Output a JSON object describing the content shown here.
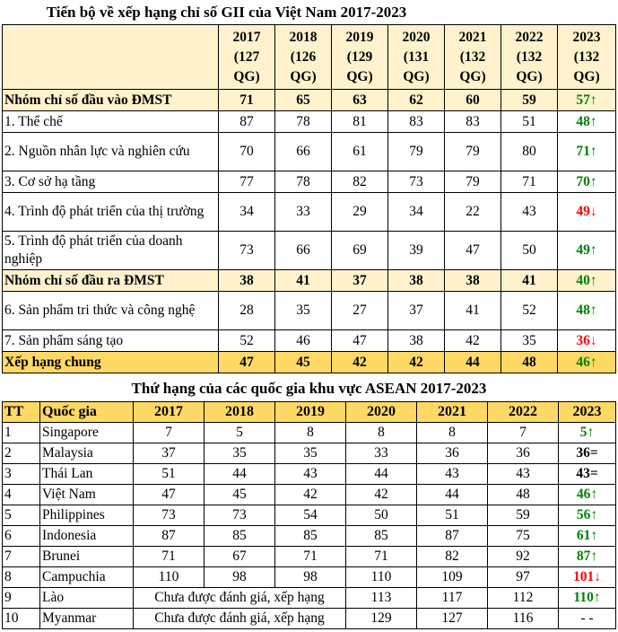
{
  "meta": {
    "trend_symbols": {
      "up": "↑",
      "down": "↓",
      "same": "=",
      "none": ""
    },
    "trend_colors": {
      "up": "#008000",
      "down": "#FF0000",
      "same": "#000000",
      "none": "#000000"
    },
    "palette": {
      "pale_yellow": "#FFF2CC",
      "gold": "#FFD966",
      "border": "#000000",
      "text": "#000000",
      "background": "#FFFFFF"
    }
  },
  "table1": {
    "title": "Tiến bộ về xếp hạng chỉ số GII của Việt Nam 2017-2023",
    "columns": [
      {
        "year": "2017",
        "countries": "(127 QG)"
      },
      {
        "year": "2018",
        "countries": "(126 QG)"
      },
      {
        "year": "2019",
        "countries": "(129 QG)"
      },
      {
        "year": "2020",
        "countries": "(131 QG)"
      },
      {
        "year": "2021",
        "countries": "(132 QG)"
      },
      {
        "year": "2022",
        "countries": "(132 QG)"
      },
      {
        "year": "2023",
        "countries": "(132 QG)"
      }
    ],
    "rows": [
      {
        "label": "Nhóm chỉ số đầu vào ĐMST",
        "type": "group",
        "values": [
          "71",
          "65",
          "63",
          "62",
          "60",
          "59"
        ],
        "final": "57",
        "trend": "up"
      },
      {
        "label": "1. Thể chế",
        "type": "item",
        "values": [
          "87",
          "78",
          "81",
          "83",
          "83",
          "51"
        ],
        "final": "48",
        "trend": "up"
      },
      {
        "label": "2. Nguồn nhân lực và nghiên cứu",
        "type": "item",
        "values": [
          "70",
          "66",
          "61",
          "79",
          "79",
          "80"
        ],
        "final": "71",
        "trend": "up"
      },
      {
        "label": "3. Cơ sở hạ tầng",
        "type": "item",
        "values": [
          "77",
          "78",
          "82",
          "73",
          "79",
          "71"
        ],
        "final": "70",
        "trend": "up"
      },
      {
        "label": "4. Trình độ phát triển của thị trường",
        "type": "item",
        "values": [
          "34",
          "33",
          "29",
          "34",
          "22",
          "43"
        ],
        "final": "49",
        "trend": "down"
      },
      {
        "label": "5. Trình độ phát triển của doanh nghiệp",
        "type": "item",
        "values": [
          "73",
          "66",
          "69",
          "39",
          "47",
          "50"
        ],
        "final": "49",
        "trend": "up"
      },
      {
        "label": "Nhóm chỉ số đầu ra ĐMST",
        "type": "group",
        "values": [
          "38",
          "41",
          "37",
          "38",
          "38",
          "41"
        ],
        "final": "40",
        "trend": "up"
      },
      {
        "label": "6. Sản phẩm tri thức và công nghệ",
        "type": "item",
        "values": [
          "28",
          "35",
          "27",
          "37",
          "41",
          "52"
        ],
        "final": "48",
        "trend": "up"
      },
      {
        "label": "7. Sản phẩm sáng tạo",
        "type": "item",
        "values": [
          "52",
          "46",
          "47",
          "38",
          "42",
          "35"
        ],
        "final": "36",
        "trend": "down"
      },
      {
        "label": "Xếp hạng chung",
        "type": "total",
        "values": [
          "47",
          "45",
          "42",
          "42",
          "44",
          "48"
        ],
        "final": "46",
        "trend": "up"
      }
    ]
  },
  "table2": {
    "title": "Thứ hạng của các quốc gia khu vực ASEAN 2017-2023",
    "headers": [
      "TT",
      "Quốc gia",
      "2017",
      "2018",
      "2019",
      "2020",
      "2021",
      "2022",
      "2023"
    ],
    "not_ranked_text": "Chưa được đánh giá, xếp hạng",
    "rows": [
      {
        "tt": "1",
        "country": "Singapore",
        "values": [
          "7",
          "5",
          "8",
          "8",
          "8",
          "7"
        ],
        "final": "5",
        "trend": "up"
      },
      {
        "tt": "2",
        "country": "Malaysia",
        "values": [
          "37",
          "35",
          "35",
          "33",
          "36",
          "36"
        ],
        "final": "36",
        "trend": "same"
      },
      {
        "tt": "3",
        "country": "Thái Lan",
        "values": [
          "51",
          "44",
          "43",
          "44",
          "43",
          "43"
        ],
        "final": "43",
        "trend": "same"
      },
      {
        "tt": "4",
        "country": "Việt Nam",
        "values": [
          "47",
          "45",
          "42",
          "42",
          "44",
          "48"
        ],
        "final": "46",
        "trend": "up"
      },
      {
        "tt": "5",
        "country": "Philippines",
        "values": [
          "73",
          "73",
          "54",
          "50",
          "51",
          "59"
        ],
        "final": "56",
        "trend": "up"
      },
      {
        "tt": "6",
        "country": "Indonesia",
        "values": [
          "87",
          "85",
          "85",
          "85",
          "87",
          "75"
        ],
        "final": "61",
        "trend": "up"
      },
      {
        "tt": "7",
        "country": "Brunei",
        "values": [
          "71",
          "67",
          "71",
          "71",
          "82",
          "92"
        ],
        "final": "87",
        "trend": "up"
      },
      {
        "tt": "8",
        "country": "Campuchia",
        "values": [
          "110",
          "98",
          "98",
          "110",
          "109",
          "97"
        ],
        "final": "101",
        "trend": "down"
      },
      {
        "tt": "9",
        "country": "Lào",
        "not_ranked_span": true,
        "values": [
          "113",
          "117",
          "112"
        ],
        "final": "110",
        "trend": "up"
      },
      {
        "tt": "10",
        "country": "Myanmar",
        "not_ranked_span": true,
        "values": [
          "129",
          "127",
          "116"
        ],
        "final": "- -",
        "trend": "none"
      }
    ]
  }
}
